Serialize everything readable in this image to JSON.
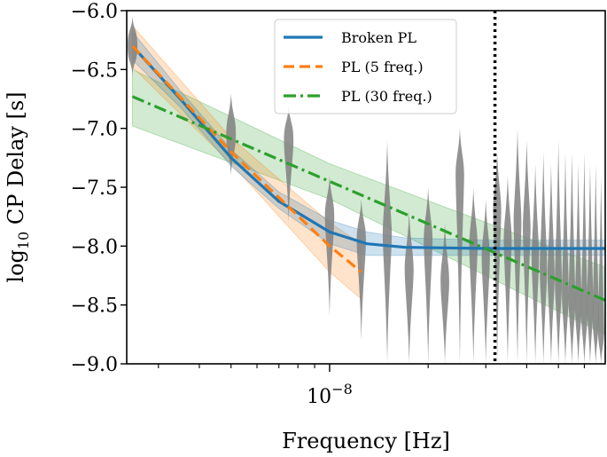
{
  "chart_data": {
    "type": "line",
    "xlabel": "Frequency [Hz]",
    "ylabel_base": "log",
    "ylabel_sub": "10",
    "ylabel_rest": " CP Delay [s]",
    "x_scale": "log",
    "xlim": [
      2.4e-09,
      6.95e-08
    ],
    "ylim": [
      -9.0,
      -6.0
    ],
    "y_ticks": [
      -6.0,
      -6.5,
      -7.0,
      -7.5,
      -8.0,
      -8.5,
      -9.0
    ],
    "y_tick_labels": [
      "−6.0",
      "−6.5",
      "−7.0",
      "−7.5",
      "−8.0",
      "−8.5",
      "−9.0"
    ],
    "x_major_tick": 1e-08,
    "x_tick_label_base": "10",
    "x_tick_label_exp": "−8",
    "x_minor_ticks": [
      3e-09,
      4e-09,
      5e-09,
      6e-09,
      7e-09,
      8e-09,
      9e-09,
      2e-08,
      3e-08,
      4e-08,
      5e-08,
      6e-08
    ],
    "vline": {
      "x": 3.2e-08,
      "style": "dotted",
      "color": "#000000"
    },
    "violins": {
      "freq_start": 2.5e-09,
      "freq_step": 2.5e-09,
      "count": 27,
      "color": "#808080",
      "items": [
        [
          -6.55,
          -6.05,
          -6.3
        ],
        [
          -7.4,
          -6.7,
          -7.05
        ],
        [
          -7.8,
          -6.8,
          -7.1
        ],
        [
          -8.6,
          -7.4,
          -7.75
        ],
        [
          -8.8,
          -7.6,
          -7.95
        ],
        [
          -9.0,
          -7.1,
          -7.9
        ],
        [
          -9.0,
          -7.7,
          -8.2
        ],
        [
          -9.0,
          -7.5,
          -7.95
        ],
        [
          -9.0,
          -7.8,
          -8.3
        ],
        [
          -9.0,
          -7.0,
          -7.4
        ],
        [
          -9.0,
          -7.5,
          -8.0
        ],
        [
          -9.0,
          -7.6,
          -8.1
        ],
        [
          -9.0,
          -7.2,
          -7.7
        ],
        [
          -9.0,
          -7.4,
          -7.95
        ],
        [
          -9.0,
          -7.0,
          -7.8
        ],
        [
          -9.0,
          -7.1,
          -7.85
        ],
        [
          -9.0,
          -7.3,
          -8.1
        ],
        [
          -9.0,
          -7.2,
          -8.2
        ],
        [
          -9.0,
          -7.3,
          -8.25
        ],
        [
          -9.0,
          -7.1,
          -8.3
        ],
        [
          -9.0,
          -7.2,
          -8.4
        ],
        [
          -9.0,
          -7.2,
          -8.45
        ],
        [
          -9.0,
          -7.3,
          -8.5
        ],
        [
          -9.0,
          -7.2,
          -8.55
        ],
        [
          -9.0,
          -7.3,
          -8.5
        ],
        [
          -9.0,
          -7.3,
          -8.6
        ],
        [
          -9.0,
          -7.4,
          -8.7
        ]
      ]
    },
    "series": [
      {
        "name": "Broken PL",
        "color": "#1f77b4",
        "style": "solid",
        "x": [
          2.5e-09,
          3.5e-09,
          5e-09,
          7e-09,
          1e-08,
          1.3e-08,
          1.7e-08,
          3e-08,
          6.95e-08
        ],
        "y": [
          -6.3,
          -6.75,
          -7.25,
          -7.62,
          -7.88,
          -7.98,
          -8.01,
          -8.02,
          -8.02
        ],
        "band_lower": [
          -6.42,
          -6.82,
          -7.32,
          -7.68,
          -7.98,
          -8.08,
          -8.08,
          -8.08,
          -8.08
        ],
        "band_upper": [
          -6.18,
          -6.68,
          -7.18,
          -7.54,
          -7.78,
          -7.88,
          -7.93,
          -7.95,
          -7.95
        ]
      },
      {
        "name": "PL (5 freq.)",
        "color": "#ff7f0e",
        "style": "dashed",
        "x": [
          2.5e-09,
          5e-09,
          1e-08,
          1.25e-08
        ],
        "y": [
          -6.3,
          -7.2,
          -8.0,
          -8.22
        ],
        "band_lower": [
          -6.48,
          -7.3,
          -8.22,
          -8.45
        ],
        "band_upper": [
          -6.13,
          -7.08,
          -7.8,
          -7.98
        ]
      },
      {
        "name": "PL (30 freq.)",
        "color": "#2ca02c",
        "style": "dashdot",
        "x": [
          2.5e-09,
          1e-08,
          6.95e-08
        ],
        "y": [
          -6.73,
          -7.45,
          -8.46
        ],
        "band_lower": [
          -6.98,
          -7.6,
          -8.75
        ],
        "band_upper": [
          -6.5,
          -7.3,
          -8.18
        ]
      }
    ],
    "legend": {
      "location": "upper center",
      "entries": [
        "Broken PL",
        "PL (5 freq.)",
        "PL (30 freq.)"
      ]
    }
  }
}
